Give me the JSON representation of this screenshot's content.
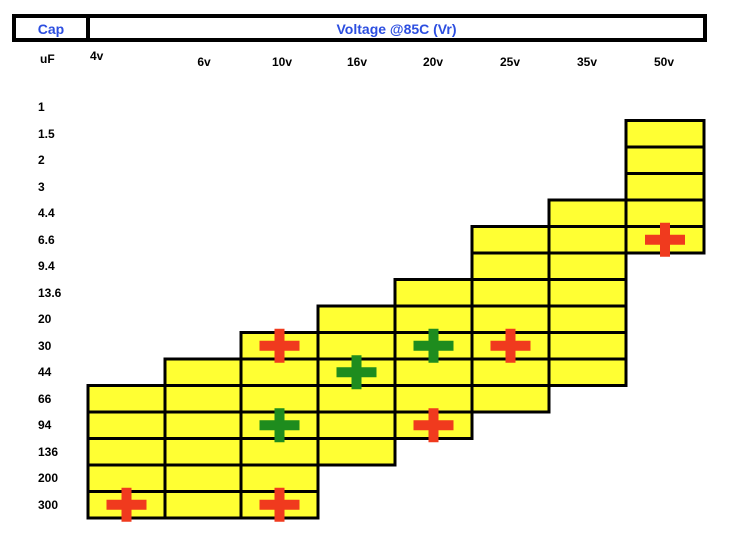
{
  "header": {
    "cap_title": "Cap",
    "voltage_title": "Voltage @85C (Vr)",
    "unit_label": "uF"
  },
  "colors": {
    "cell_fill": "#ffff33",
    "header_text": "#2c4ee0",
    "red_marker": "#f03a1e",
    "green_marker": "#1e8c1e"
  },
  "chart_data": {
    "type": "table",
    "title": "Voltage @85C (Vr)",
    "voltages": [
      "4v",
      "6v",
      "10v",
      "16v",
      "20v",
      "25v",
      "35v",
      "50v"
    ],
    "capacitances": [
      "1",
      "1.5",
      "2",
      "3",
      "4.4",
      "6.6",
      "9.4",
      "13.6",
      "20",
      "30",
      "44",
      "66",
      "94",
      "136",
      "200",
      "300"
    ],
    "available_ranges": [
      {
        "voltage": "4v",
        "from": "66",
        "to": "300"
      },
      {
        "voltage": "6v",
        "from": "44",
        "to": "300"
      },
      {
        "voltage": "10v",
        "from": "30",
        "to": "300"
      },
      {
        "voltage": "16v",
        "from": "20",
        "to": "136"
      },
      {
        "voltage": "20v",
        "from": "13.6",
        "to": "94"
      },
      {
        "voltage": "25v",
        "from": "6.6",
        "to": "66"
      },
      {
        "voltage": "35v",
        "from": "4.4",
        "to": "44"
      },
      {
        "voltage": "50v",
        "from": "1.5",
        "to": "6.6"
      }
    ],
    "markers": [
      {
        "voltage": "50v",
        "cap": "6.6",
        "color": "red"
      },
      {
        "voltage": "10v",
        "cap": "30",
        "color": "red"
      },
      {
        "voltage": "20v",
        "cap": "30",
        "color": "green"
      },
      {
        "voltage": "25v",
        "cap": "30",
        "color": "red"
      },
      {
        "voltage": "16v",
        "cap": "44",
        "color": "green"
      },
      {
        "voltage": "10v",
        "cap": "94",
        "color": "green"
      },
      {
        "voltage": "20v",
        "cap": "94",
        "color": "red"
      },
      {
        "voltage": "4v",
        "cap": "300",
        "color": "red"
      },
      {
        "voltage": "10v",
        "cap": "300",
        "color": "red"
      }
    ]
  }
}
